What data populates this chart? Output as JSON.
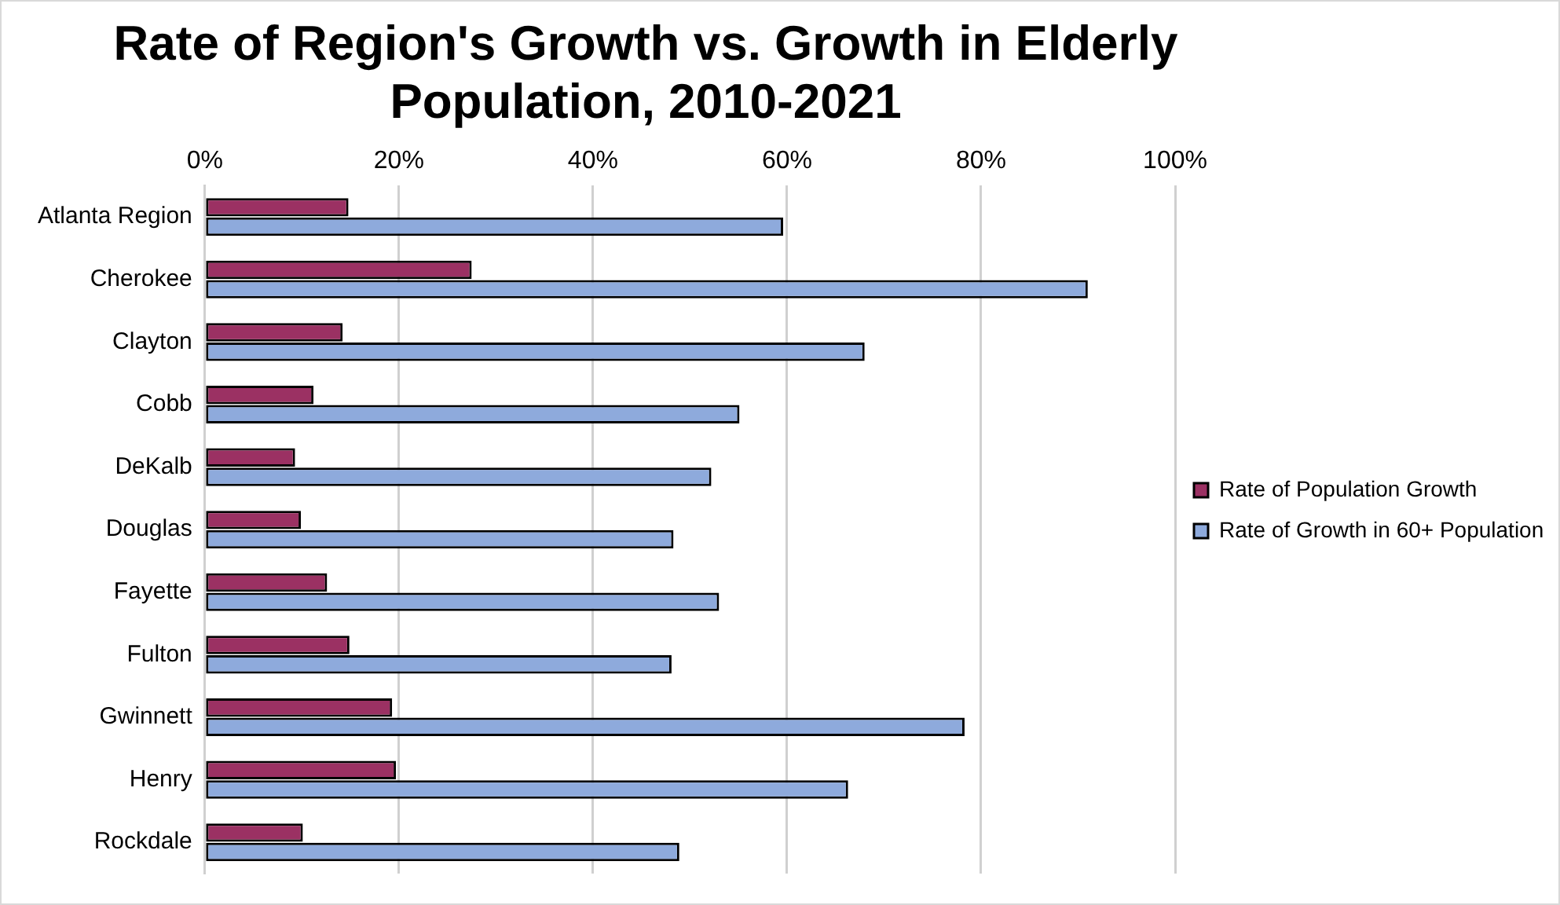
{
  "chart_data": {
    "type": "bar",
    "orientation": "horizontal",
    "title": "Rate of Region's Growth vs. Growth in Elderly Population, 2010-2021",
    "categories": [
      "Atlanta Region",
      "Cherokee",
      "Clayton",
      "Cobb",
      "DeKalb",
      "Douglas",
      "Fayette",
      "Fulton",
      "Gwinnett",
      "Henry",
      "Rockdale"
    ],
    "series": [
      {
        "name": "Rate of Population Growth",
        "color": "#9b3163",
        "values": [
          14.8,
          27.5,
          14.2,
          11.2,
          9.3,
          9.9,
          12.6,
          14.9,
          19.3,
          19.7,
          10.1
        ]
      },
      {
        "name": "Rate of Growth in 60+ Population",
        "color": "#8eaadc",
        "values": [
          59.6,
          91.0,
          68.0,
          55.1,
          52.2,
          48.3,
          53.0,
          48.1,
          78.3,
          66.3,
          48.9
        ]
      }
    ],
    "xlim": [
      0,
      100
    ],
    "xticks": [
      {
        "value": 0,
        "label": "0%"
      },
      {
        "value": 20,
        "label": "20%"
      },
      {
        "value": 40,
        "label": "40%"
      },
      {
        "value": 60,
        "label": "60%"
      },
      {
        "value": 80,
        "label": "80%"
      },
      {
        "value": 100,
        "label": "100%"
      }
    ],
    "grid": "x",
    "legend": "right"
  }
}
